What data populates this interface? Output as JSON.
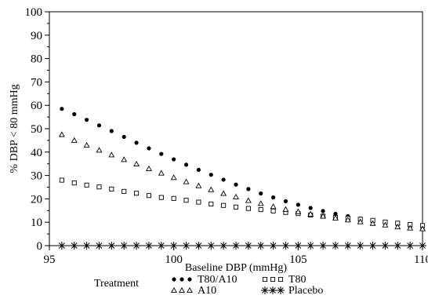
{
  "chart_data": {
    "type": "scatter",
    "xlabel": "Baseline DBP (mmHg)",
    "ylabel": "% DBP < 80 mmHg",
    "xlim": [
      95,
      110
    ],
    "ylim": [
      0,
      100
    ],
    "x_ticks": [
      95,
      100,
      105,
      110
    ],
    "y_ticks": [
      0,
      10,
      20,
      30,
      40,
      50,
      60,
      70,
      80,
      90,
      100
    ],
    "grid": false,
    "legend_title": "Treatment",
    "legend_position": "bottom",
    "x": [
      95.5,
      96.0,
      96.5,
      97.0,
      97.5,
      98.0,
      98.5,
      99.0,
      99.5,
      100.0,
      100.5,
      101.0,
      101.5,
      102.0,
      102.5,
      103.0,
      103.5,
      104.0,
      104.5,
      105.0,
      105.5,
      106.0,
      106.5,
      107.0,
      107.5,
      108.0,
      108.5,
      109.0,
      109.5,
      110.0
    ],
    "series": [
      {
        "name": "T80/A10",
        "marker": "filled-circle",
        "values": [
          58.5,
          56.2,
          53.8,
          51.4,
          49.0,
          46.5,
          44.0,
          41.6,
          39.2,
          36.9,
          34.6,
          32.4,
          30.3,
          28.2,
          26.1,
          24.2,
          22.3,
          20.6,
          19.0,
          17.5,
          16.1,
          14.8,
          13.6,
          12.6,
          11.6,
          10.8,
          9.9,
          9.0,
          8.0,
          7.2
        ]
      },
      {
        "name": "T80",
        "marker": "open-square",
        "values": [
          28.0,
          26.8,
          25.9,
          25.1,
          24.2,
          23.2,
          22.4,
          21.4,
          20.6,
          20.2,
          19.4,
          18.6,
          17.8,
          17.2,
          16.5,
          15.9,
          15.4,
          14.8,
          14.2,
          13.7,
          13.1,
          12.6,
          12.1,
          11.7,
          11.3,
          10.8,
          10.1,
          9.6,
          9.0,
          8.6
        ]
      },
      {
        "name": "A10",
        "marker": "open-triangle",
        "values": [
          47.5,
          45.0,
          42.9,
          40.8,
          38.8,
          36.8,
          34.9,
          32.9,
          31.0,
          29.1,
          27.3,
          25.6,
          23.9,
          22.3,
          20.8,
          19.3,
          18.0,
          16.7,
          15.5,
          14.5,
          13.5,
          12.6,
          11.8,
          11.0,
          10.2,
          9.5,
          8.8,
          8.0,
          7.5,
          7.2
        ]
      },
      {
        "name": "Placebo",
        "marker": "asterisk",
        "values": [
          0,
          0,
          0,
          0,
          0,
          0,
          0,
          0,
          0,
          0,
          0,
          0,
          0,
          0,
          0,
          0,
          0,
          0,
          0,
          0,
          0,
          0,
          0,
          0,
          0,
          0,
          0,
          0,
          0,
          0
        ]
      }
    ]
  }
}
